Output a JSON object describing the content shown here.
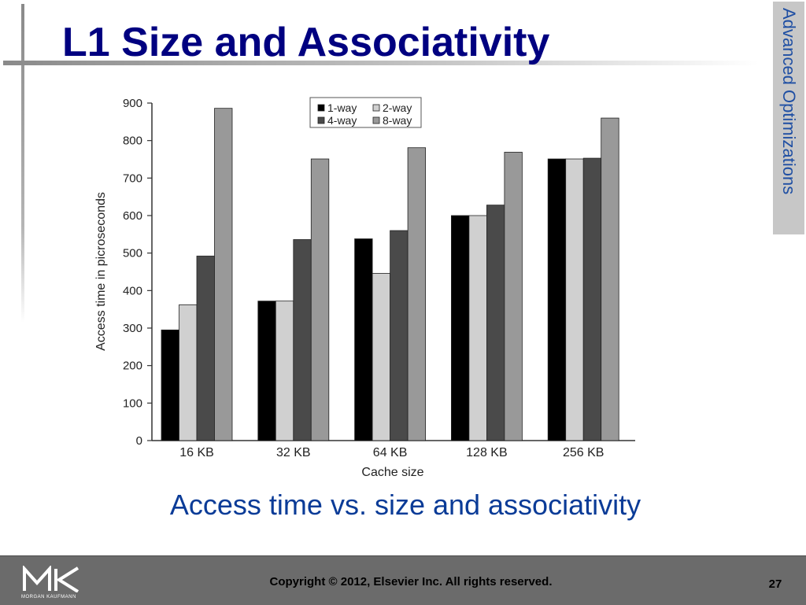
{
  "slide": {
    "title": "L1 Size and Associativity",
    "side_label": "Advanced Optimizations",
    "caption": "Access time vs. size and associativity",
    "copyright": "Copyright © 2012, Elsevier Inc. All rights reserved.",
    "page_number": "27",
    "logo_text": "MORGAN KAUFMANN"
  },
  "chart_data": {
    "type": "bar",
    "categories": [
      "16 KB",
      "32 KB",
      "64 KB",
      "128 KB",
      "256 KB"
    ],
    "series": [
      {
        "name": "1-way",
        "color": "#000000",
        "values": [
          295,
          372,
          538,
          600,
          751
        ]
      },
      {
        "name": "2-way",
        "color": "#d0d0d0",
        "values": [
          362,
          372,
          446,
          600,
          751
        ]
      },
      {
        "name": "4-way",
        "color": "#4a4a4a",
        "values": [
          492,
          536,
          560,
          628,
          753
        ]
      },
      {
        "name": "8-way",
        "color": "#999999",
        "values": [
          886,
          751,
          781,
          769,
          860
        ]
      }
    ],
    "xlabel": "Cache size",
    "ylabel": "Access time in picroseconds",
    "ylim": [
      0,
      900
    ],
    "yticks": [
      0,
      100,
      200,
      300,
      400,
      500,
      600,
      700,
      800,
      900
    ],
    "grid": false,
    "legend_position": "top-center"
  }
}
